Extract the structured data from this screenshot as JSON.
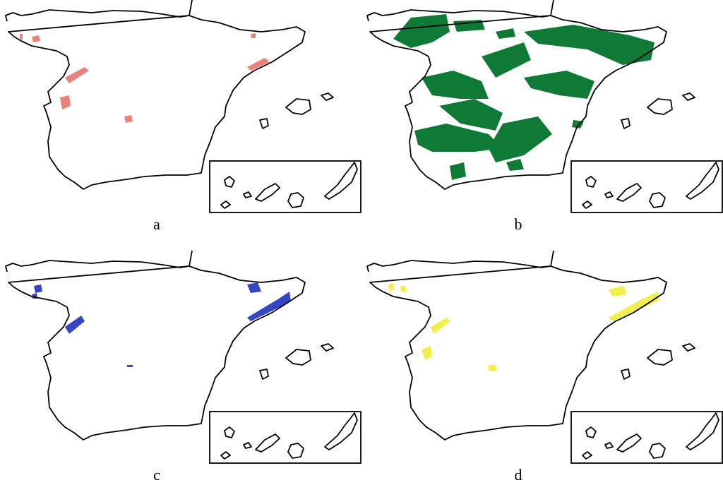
{
  "panels": [
    {
      "label": "a",
      "color": "#e8827a"
    },
    {
      "label": "b",
      "color": "#0f7a35"
    },
    {
      "label": "c",
      "color": "#3446c4"
    },
    {
      "label": "d",
      "color": "#f2ee4a"
    }
  ]
}
